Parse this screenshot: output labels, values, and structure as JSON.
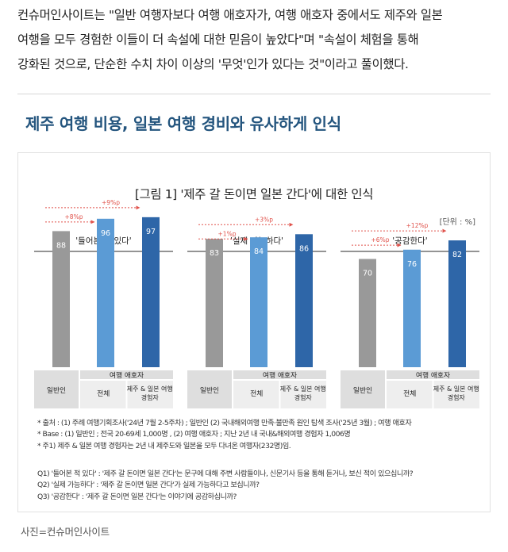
{
  "article": {
    "lines": [
      "컨슈머인사이트는 \"일반 여행자보다 여행 애호자가, 여행 애호자 중에서도 제주와 일본",
      "여행을 모두 경험한 이들이 더 속설에 대한 믿음이 높았다\"며 \"속설이 체험을 통해",
      "강화된 것으로, 단순한 수치 차이 이상의 '무엇'인가 있다는 것\"이라고 풀이했다."
    ],
    "subheading": "제주 여행 비용, 일본 여행 경비와 유사하게 인식",
    "caption": "사진=컨슈머인사이트"
  },
  "figure": {
    "title": "[그림 1] '제주 갈 돈이면 일본 간다'에 대한 인식",
    "unit": "[단위 : %]",
    "notes": [
      "* 출처 : (1) 주례 여행기획조사('24년 7월 2-5주차) ; 일반인 (2) 국내해외여행 만족·불만족 원인 탐색 조사('25년 3월) ; 여행 애호자",
      "* Base : (1) 일반인 ; 전국 20-69세 1,000명 , (2) 여행 애호자 ; 지난 2년 내 국내&해외여행 경험자 1,006명",
      "* 주1) 제주 & 일본 여행 경험자는 2년 내 제주도와 일본을 모두 다녀온 여행자(232명)임."
    ],
    "questions": [
      "Q1) '들어본 적 있다' : '제주 갈 돈이면 일본 간다'는 문구에 대해 주변 사람들이나, 신문기사 등을 통해 듣거나, 보신 적이 있으십니까?",
      "Q2) '실제 가능하다' : '제주 갈 돈이면 일본 간다'가 실제 가능하다고 보십니까?",
      "Q3) '공감한다' : '제주 갈 돈이면 일본 간다'는 이야기에 공감하십니까?"
    ]
  },
  "chart_data": {
    "type": "bar",
    "title": "[그림 1] '제주 갈 돈이면 일본 간다'에 대한 인식",
    "unit": "[단위 : %]",
    "categories": [
      "일반인",
      "전체",
      "제주 & 일본 여행 경험자"
    ],
    "category_display": [
      [
        "일반인"
      ],
      [
        "전체"
      ],
      [
        "제주 & 일본 여행",
        "경험자"
      ]
    ],
    "group_header": "여행 애호자",
    "colors": [
      "#999999",
      "#5b9bd5",
      "#2e66a8"
    ],
    "panels": [
      {
        "label": "'들어본 적 있다'",
        "values": [
          88,
          96,
          97
        ],
        "diff_short": "+8%p",
        "diff_long": "+9%p"
      },
      {
        "label": "'실제 가능하다'",
        "values": [
          83,
          84,
          86
        ],
        "diff_short": "+1%p",
        "diff_long": "+3%p"
      },
      {
        "label": "'공감한다'",
        "values": [
          70,
          76,
          82
        ],
        "diff_short": "+6%p",
        "diff_long": "+12%p"
      }
    ]
  }
}
